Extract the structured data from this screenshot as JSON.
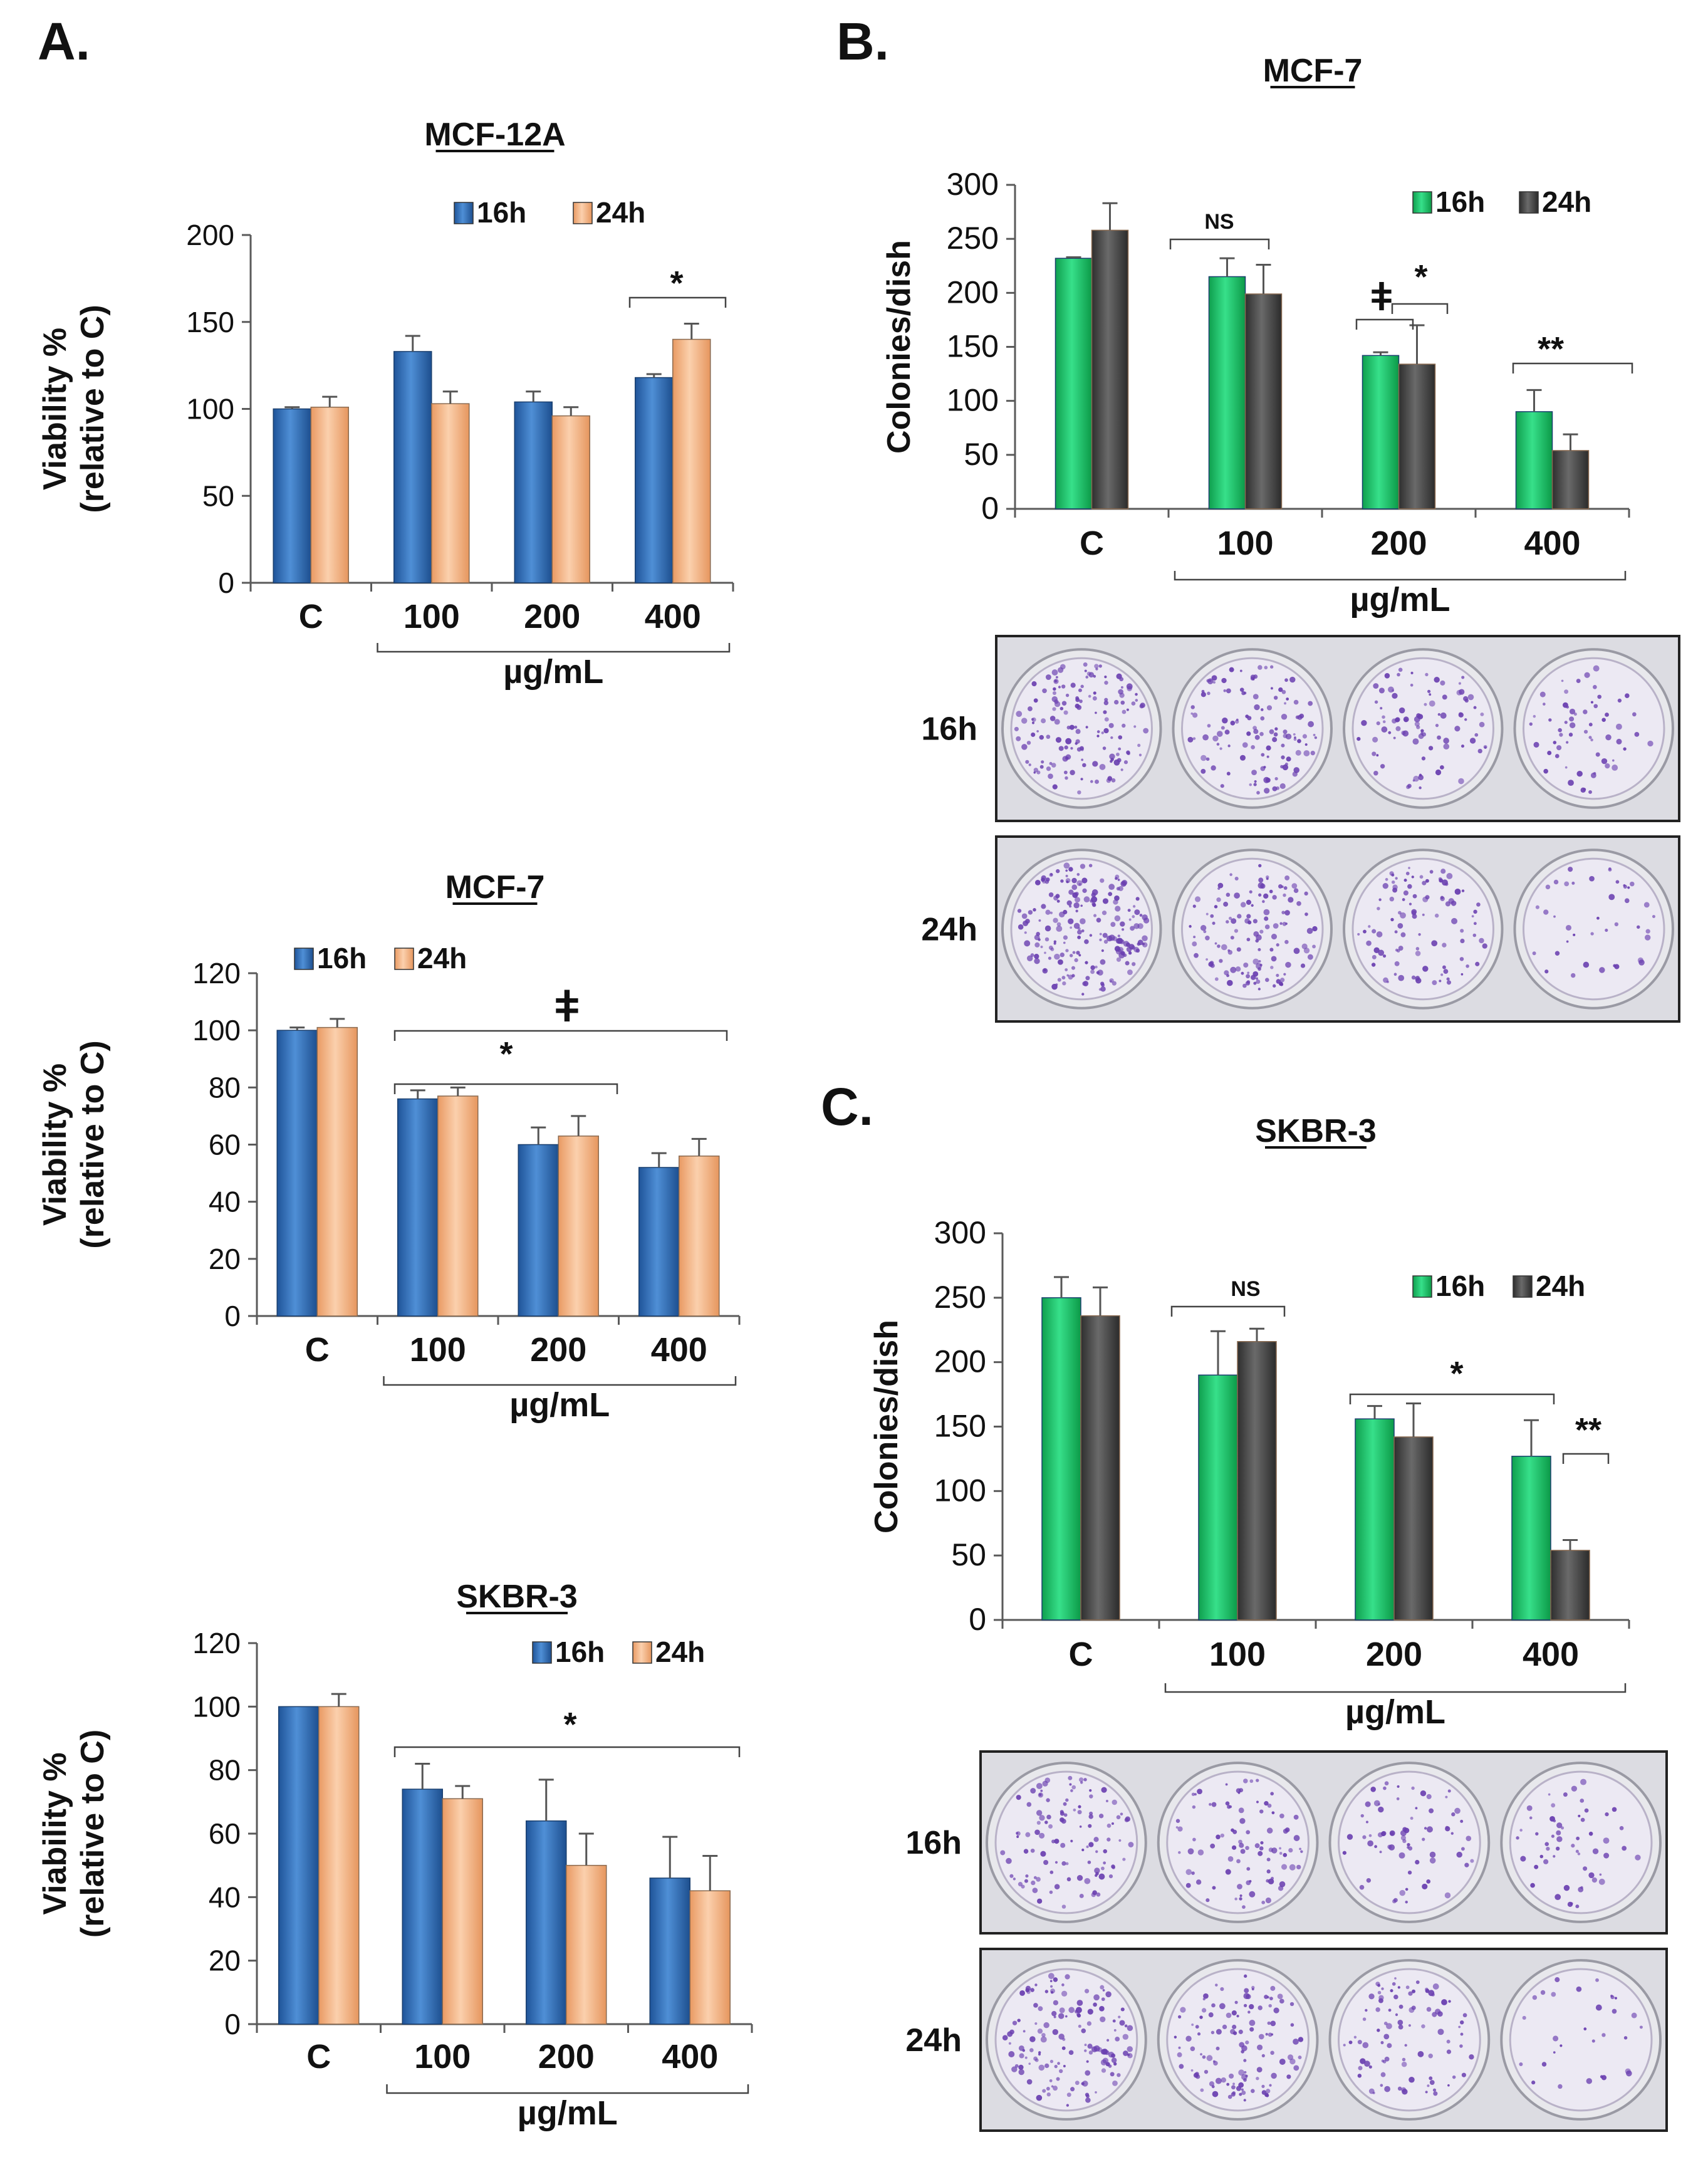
{
  "panels": {
    "a_label": "A.",
    "b_label": "B.",
    "c_label": "C."
  },
  "colors": {
    "blue_16h": "#2f6fb8",
    "peach_24h": "#f5b88a",
    "green_16h": "#1fc46a",
    "gray_24h": "#4a4a4a",
    "dish_purple": "#6a3fb0"
  },
  "plates": {
    "b": {
      "row1": "16h",
      "row2": "24h"
    },
    "c": {
      "row1": "16h",
      "row2": "24h"
    }
  },
  "chart_data": [
    {
      "id": "a1",
      "type": "bar",
      "title": "MCF-12A",
      "ylabel_line1": "Viability %",
      "ylabel_line2": "(relative to C)",
      "categories": [
        "C",
        "100",
        "200",
        "400"
      ],
      "unit_label": "µg/mL",
      "ylim": [
        0,
        200
      ],
      "yticks": [
        "0",
        "50",
        "100",
        "150",
        "200"
      ],
      "series": [
        {
          "name": "16h",
          "values": [
            100,
            133,
            104,
            118
          ],
          "errors": [
            1,
            9,
            6,
            2
          ]
        },
        {
          "name": "24h",
          "values": [
            101,
            103,
            96,
            140
          ],
          "errors": [
            6,
            7,
            5,
            9
          ]
        }
      ],
      "annotations": [
        {
          "text": "*",
          "from": 3,
          "to": 3
        }
      ]
    },
    {
      "id": "a2",
      "type": "bar",
      "title": "MCF-7",
      "ylabel_line1": "Viability %",
      "ylabel_line2": "(relative to C)",
      "categories": [
        "C",
        "100",
        "200",
        "400"
      ],
      "unit_label": "µg/mL",
      "ylim": [
        0,
        120
      ],
      "yticks": [
        "0",
        "20",
        "40",
        "60",
        "80",
        "100",
        "120"
      ],
      "series": [
        {
          "name": "16h",
          "values": [
            100,
            76,
            60,
            52
          ],
          "errors": [
            1,
            3,
            6,
            5
          ]
        },
        {
          "name": "24h",
          "values": [
            101,
            77,
            63,
            56
          ],
          "errors": [
            3,
            3,
            7,
            6
          ]
        }
      ],
      "annotations": [
        {
          "text": "ǂ",
          "from": 1,
          "to": 3
        },
        {
          "text": "*",
          "from": 1,
          "to": 2
        }
      ]
    },
    {
      "id": "a3",
      "type": "bar",
      "title": "SKBR-3",
      "ylabel_line1": "Viability %",
      "ylabel_line2": "(relative to C)",
      "categories": [
        "C",
        "100",
        "200",
        "400"
      ],
      "unit_label": "µg/mL",
      "ylim": [
        0,
        120
      ],
      "yticks": [
        "0",
        "20",
        "40",
        "60",
        "80",
        "100",
        "120"
      ],
      "series": [
        {
          "name": "16h",
          "values": [
            100,
            74,
            64,
            46
          ],
          "errors": [
            0,
            8,
            13,
            13
          ]
        },
        {
          "name": "24h",
          "values": [
            100,
            71,
            50,
            42
          ],
          "errors": [
            4,
            4,
            10,
            11
          ]
        }
      ],
      "annotations": [
        {
          "text": "*",
          "from": 1,
          "to": 3
        }
      ]
    },
    {
      "id": "b",
      "type": "bar",
      "title": "MCF-7",
      "ylabel_line1": "Colonies/dish",
      "ylabel_line2": "",
      "categories": [
        "C",
        "100",
        "200",
        "400"
      ],
      "unit_label": "µg/mL",
      "ylim": [
        0,
        300
      ],
      "yticks": [
        "0",
        "50",
        "100",
        "150",
        "200",
        "250",
        "300"
      ],
      "series": [
        {
          "name": "16h",
          "values": [
            232,
            215,
            142,
            90
          ],
          "errors": [
            1,
            17,
            3,
            20
          ]
        },
        {
          "name": "24h",
          "values": [
            258,
            199,
            134,
            54
          ],
          "errors": [
            25,
            27,
            36,
            15
          ]
        }
      ],
      "annotations": [
        {
          "text": "NS",
          "from": 1,
          "to": 1
        },
        {
          "text": "ǂ",
          "from": 2,
          "to": 2
        },
        {
          "text": "*",
          "from": 2,
          "to": 2
        },
        {
          "text": "**",
          "from": 3,
          "to": 3
        }
      ]
    },
    {
      "id": "c",
      "type": "bar",
      "title": "SKBR-3",
      "ylabel_line1": "Colonies/dish",
      "ylabel_line2": "",
      "categories": [
        "C",
        "100",
        "200",
        "400"
      ],
      "unit_label": "µg/mL",
      "ylim": [
        0,
        300
      ],
      "yticks": [
        "0",
        "50",
        "100",
        "150",
        "200",
        "250",
        "300"
      ],
      "series": [
        {
          "name": "16h",
          "values": [
            250,
            190,
            156,
            127
          ],
          "errors": [
            16,
            34,
            10,
            28
          ]
        },
        {
          "name": "24h",
          "values": [
            236,
            216,
            142,
            54
          ],
          "errors": [
            22,
            10,
            26,
            8
          ]
        }
      ],
      "annotations": [
        {
          "text": "NS",
          "from": 1,
          "to": 1
        },
        {
          "text": "*",
          "from": 2,
          "to": 3
        },
        {
          "text": "**",
          "from": 3,
          "to": 3
        }
      ]
    }
  ]
}
